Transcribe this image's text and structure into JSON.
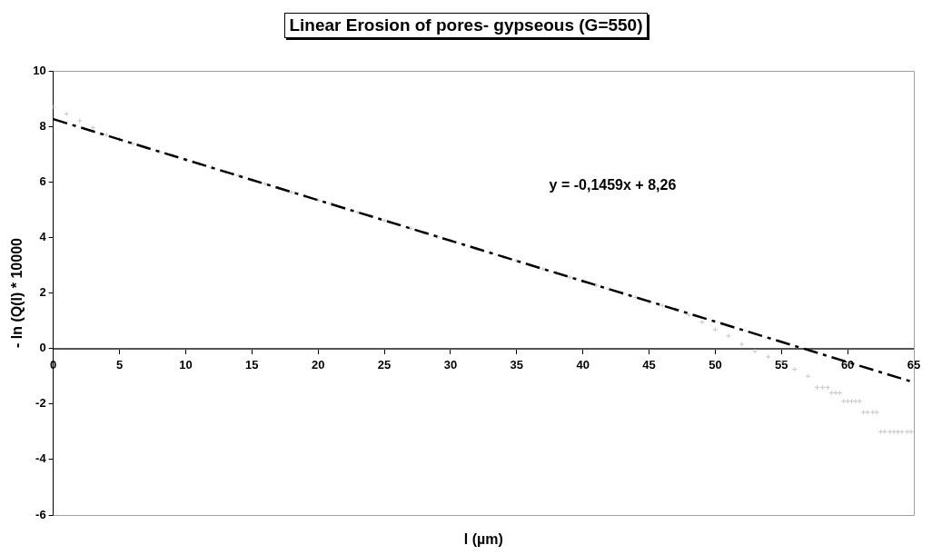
{
  "chart_data": {
    "type": "scatter",
    "title": "Linear Erosion of pores- gypseous (G=550)",
    "xlabel": "l (µm)",
    "ylabel": "- ln (Q(l) * 10000",
    "xlim": [
      0,
      65
    ],
    "ylim": [
      -6,
      10
    ],
    "xticks": [
      0,
      5,
      10,
      15,
      20,
      25,
      30,
      35,
      40,
      45,
      50,
      55,
      60,
      65
    ],
    "yticks": [
      -6,
      -4,
      -2,
      0,
      2,
      4,
      6,
      8,
      10
    ],
    "grid": false,
    "annotations": [
      "y = -0,1459x + 8,26"
    ],
    "series": [
      {
        "marker": "cross",
        "color": "#c8c8c8",
        "x": [
          0,
          1,
          2,
          3,
          4,
          5,
          6,
          7,
          8,
          9,
          10,
          11,
          12,
          13,
          14,
          15,
          16,
          17,
          18,
          19,
          20,
          21,
          22,
          23,
          24,
          25,
          26,
          27,
          28,
          29,
          30,
          31,
          32,
          33,
          34,
          35,
          36,
          37,
          38,
          39,
          40,
          41,
          42,
          43,
          44,
          45,
          46,
          47,
          48,
          49,
          50,
          51,
          52,
          53,
          54,
          55,
          56,
          57,
          57.7,
          58.1,
          58.5,
          58.8,
          59.1,
          59.4,
          59.7,
          60,
          60.3,
          60.6,
          60.9,
          61.2,
          61.5,
          61.9,
          62.2,
          62.5,
          62.8,
          63.2,
          63.5,
          63.8,
          64.1,
          64.5,
          64.8
        ],
        "values": [
          8.7,
          8.45,
          8.2,
          7.95,
          7.7,
          7.53,
          7.38,
          7.24,
          7.09,
          6.95,
          6.8,
          6.65,
          6.51,
          6.36,
          6.22,
          6.07,
          5.93,
          5.78,
          5.63,
          5.49,
          5.34,
          5.2,
          5.05,
          4.9,
          4.76,
          4.61,
          4.47,
          4.32,
          4.17,
          4.03,
          3.88,
          3.74,
          3.59,
          3.45,
          3.3,
          3.15,
          3.01,
          2.86,
          2.72,
          2.57,
          2.42,
          2.28,
          2.13,
          1.99,
          1.84,
          1.69,
          1.55,
          1.4,
          1.2,
          0.95,
          0.68,
          0.45,
          0.15,
          -0.1,
          -0.3,
          -0.5,
          -0.75,
          -1.0,
          -1.4,
          -1.4,
          -1.4,
          -1.6,
          -1.6,
          -1.6,
          -1.9,
          -1.9,
          -1.9,
          -1.9,
          -1.9,
          -2.3,
          -2.3,
          -2.3,
          -2.3,
          -3.0,
          -3.0,
          -3.0,
          -3.0,
          -3.0,
          -3.0,
          -3.0,
          -3.0
        ]
      },
      {
        "type": "line",
        "line_style": "dashed",
        "color": "#000000",
        "x": [
          0,
          65
        ],
        "values": [
          8.26,
          -1.22
        ]
      }
    ]
  }
}
